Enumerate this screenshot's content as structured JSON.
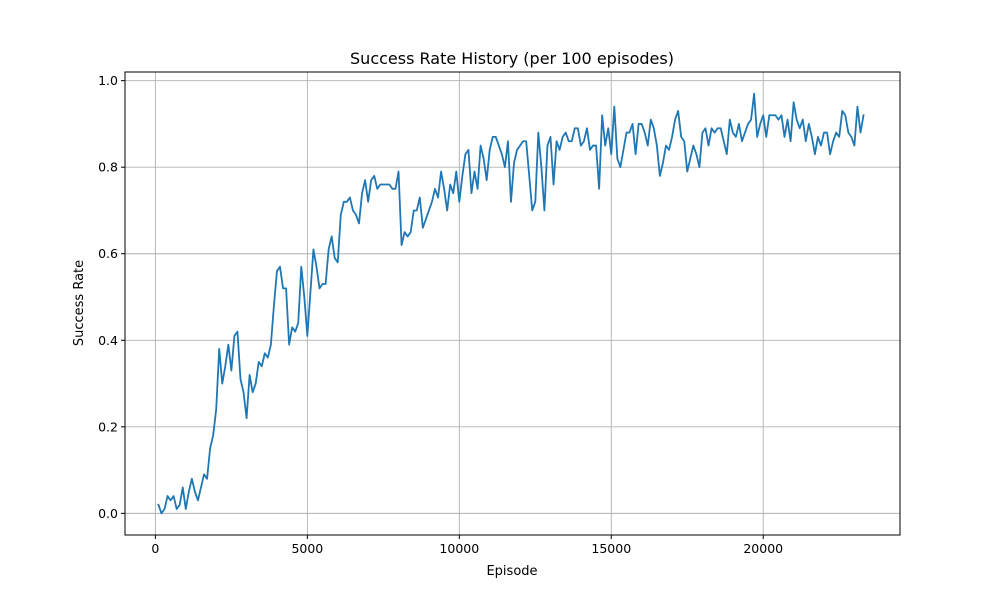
{
  "chart_data": {
    "type": "line",
    "title": "Success Rate History (per 100 episodes)",
    "xlabel": "Episode",
    "ylabel": "Success Rate",
    "xlim": [
      -1000,
      24500
    ],
    "ylim": [
      -0.05,
      1.02
    ],
    "xticks": [
      0,
      5000,
      10000,
      15000,
      20000
    ],
    "xtick_labels": [
      "0",
      "5000",
      "10000",
      "15000",
      "20000"
    ],
    "yticks": [
      0.0,
      0.2,
      0.4,
      0.6,
      0.8,
      1.0
    ],
    "ytick_labels": [
      "0.0",
      "0.2",
      "0.4",
      "0.6",
      "0.8",
      "1.0"
    ],
    "grid": true,
    "colors": {
      "line": "#1f77b4",
      "grid": "#b0b0b0",
      "axes": "#000000"
    },
    "series": [
      {
        "x": [
          100,
          200,
          300,
          400,
          500,
          600,
          700,
          800,
          900,
          1000,
          1100,
          1200,
          1300,
          1400,
          1500,
          1600,
          1700,
          1800,
          1900,
          2000,
          2100,
          2200,
          2300,
          2400,
          2500,
          2600,
          2700,
          2800,
          2900,
          3000,
          3100,
          3200,
          3300,
          3400,
          3500,
          3600,
          3700,
          3800,
          3900,
          4000,
          4100,
          4200,
          4300,
          4400,
          4500,
          4600,
          4700,
          4800,
          4900,
          5000,
          5100,
          5200,
          5300,
          5400,
          5500,
          5600,
          5700,
          5800,
          5900,
          6000,
          6100,
          6200,
          6300,
          6400,
          6500,
          6600,
          6700,
          6800,
          6900,
          7000,
          7100,
          7200,
          7300,
          7400,
          7500,
          7600,
          7700,
          7800,
          7900,
          8000,
          8100,
          8200,
          8300,
          8400,
          8500,
          8600,
          8700,
          8800,
          8900,
          9000,
          9100,
          9200,
          9300,
          9400,
          9500,
          9600,
          9700,
          9800,
          9900,
          10000,
          10100,
          10200,
          10300,
          10400,
          10500,
          10600,
          10700,
          10800,
          10900,
          11000,
          11100,
          11200,
          11300,
          11400,
          11500,
          11600,
          11700,
          11800,
          11900,
          12000,
          12100,
          12200,
          12300,
          12400,
          12500,
          12600,
          12700,
          12800,
          12900,
          13000,
          13100,
          13200,
          13300,
          13400,
          13500,
          13600,
          13700,
          13800,
          13900,
          14000,
          14100,
          14200,
          14300,
          14400,
          14500,
          14600,
          14700,
          14800,
          14900,
          15000,
          15100,
          15200,
          15300,
          15400,
          15500,
          15600,
          15700,
          15800,
          15900,
          16000,
          16100,
          16200,
          16300,
          16400,
          16500,
          16600,
          16700,
          16800,
          16900,
          17000,
          17100,
          17200,
          17300,
          17400,
          17500,
          17600,
          17700,
          17800,
          17900,
          18000,
          18100,
          18200,
          18300,
          18400,
          18500,
          18600,
          18700,
          18800,
          18900,
          19000,
          19100,
          19200,
          19300,
          19400,
          19500,
          19600,
          19700,
          19800,
          19900,
          20000,
          20100,
          20200,
          20300,
          20400,
          20500,
          20600,
          20700,
          20800,
          20900,
          21000,
          21100,
          21200,
          21300,
          21400,
          21500,
          21600,
          21700,
          21800,
          21900,
          22000,
          22100,
          22200,
          22300,
          22400,
          22500,
          22600,
          22700,
          22800,
          22900,
          23000,
          23100,
          23200,
          23300
        ],
        "y": [
          0.02,
          0.0,
          0.01,
          0.04,
          0.03,
          0.04,
          0.01,
          0.02,
          0.06,
          0.01,
          0.05,
          0.08,
          0.05,
          0.03,
          0.06,
          0.09,
          0.08,
          0.15,
          0.18,
          0.24,
          0.38,
          0.3,
          0.34,
          0.39,
          0.33,
          0.41,
          0.42,
          0.31,
          0.28,
          0.22,
          0.32,
          0.28,
          0.3,
          0.35,
          0.34,
          0.37,
          0.36,
          0.39,
          0.48,
          0.56,
          0.57,
          0.52,
          0.52,
          0.39,
          0.43,
          0.42,
          0.44,
          0.57,
          0.5,
          0.41,
          0.51,
          0.61,
          0.57,
          0.52,
          0.53,
          0.53,
          0.61,
          0.64,
          0.59,
          0.58,
          0.69,
          0.72,
          0.72,
          0.73,
          0.7,
          0.69,
          0.67,
          0.74,
          0.77,
          0.72,
          0.77,
          0.78,
          0.75,
          0.76,
          0.76,
          0.76,
          0.76,
          0.75,
          0.75,
          0.79,
          0.62,
          0.65,
          0.64,
          0.65,
          0.7,
          0.7,
          0.73,
          0.66,
          0.68,
          0.7,
          0.72,
          0.75,
          0.73,
          0.79,
          0.75,
          0.7,
          0.76,
          0.74,
          0.79,
          0.72,
          0.78,
          0.83,
          0.84,
          0.74,
          0.79,
          0.75,
          0.85,
          0.82,
          0.77,
          0.84,
          0.87,
          0.87,
          0.85,
          0.83,
          0.8,
          0.86,
          0.72,
          0.81,
          0.84,
          0.85,
          0.86,
          0.86,
          0.78,
          0.7,
          0.72,
          0.88,
          0.8,
          0.7,
          0.85,
          0.87,
          0.76,
          0.86,
          0.84,
          0.87,
          0.88,
          0.86,
          0.86,
          0.89,
          0.89,
          0.85,
          0.86,
          0.89,
          0.84,
          0.85,
          0.85,
          0.75,
          0.92,
          0.85,
          0.89,
          0.83,
          0.94,
          0.82,
          0.8,
          0.84,
          0.88,
          0.88,
          0.9,
          0.83,
          0.9,
          0.9,
          0.88,
          0.85,
          0.91,
          0.89,
          0.85,
          0.78,
          0.81,
          0.85,
          0.84,
          0.87,
          0.91,
          0.93,
          0.87,
          0.86,
          0.79,
          0.82,
          0.85,
          0.83,
          0.8,
          0.88,
          0.89,
          0.85,
          0.89,
          0.88,
          0.89,
          0.89,
          0.86,
          0.83,
          0.91,
          0.88,
          0.87,
          0.9,
          0.86,
          0.88,
          0.9,
          0.91,
          0.97,
          0.87,
          0.9,
          0.92,
          0.87,
          0.92,
          0.92,
          0.92,
          0.91,
          0.92,
          0.87,
          0.91,
          0.86,
          0.95,
          0.91,
          0.89,
          0.91,
          0.86,
          0.9,
          0.87,
          0.83,
          0.87,
          0.85,
          0.88,
          0.88,
          0.83,
          0.86,
          0.88,
          0.87,
          0.93,
          0.92,
          0.88,
          0.87,
          0.85,
          0.94,
          0.88,
          0.92
        ]
      }
    ]
  }
}
